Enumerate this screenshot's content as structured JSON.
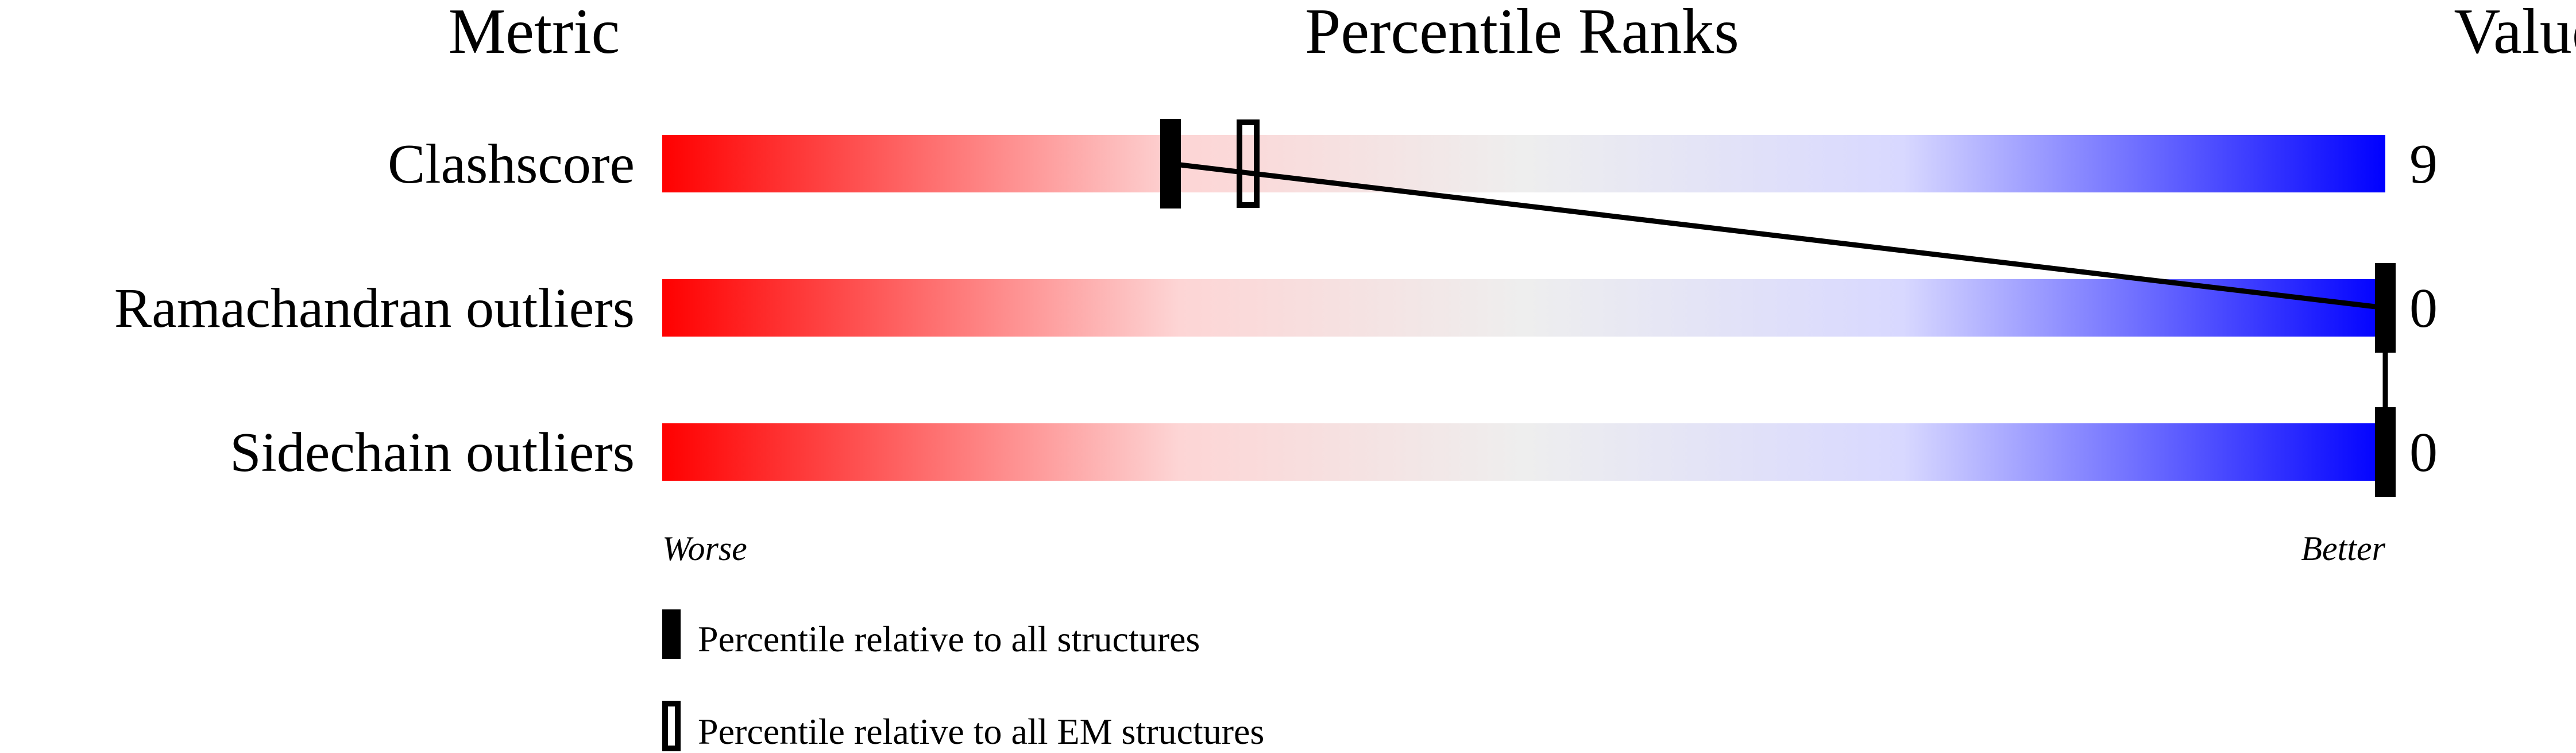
{
  "chart_data": {
    "type": "percentile-slider",
    "headers": {
      "metric": "Metric",
      "ranks": "Percentile Ranks",
      "value": "Value"
    },
    "xlim": [
      0,
      100
    ],
    "axis_labels": {
      "worse": "Worse",
      "better": "Better"
    },
    "gradient_colors": [
      "#ff0000",
      "#fdd5d5",
      "#eeeeee",
      "#d8d8ff",
      "#0000ff"
    ],
    "metrics": [
      {
        "name": "Clashscore",
        "value": "9",
        "percentile_all": 29.5,
        "percentile_em": 34
      },
      {
        "name": "Ramachandran outliers",
        "value": "0",
        "percentile_all": 100,
        "percentile_em": null
      },
      {
        "name": "Sidechain outliers",
        "value": "0",
        "percentile_all": 100,
        "percentile_em": null
      }
    ],
    "legend": [
      {
        "marker": "filled",
        "label": "Percentile relative to all structures"
      },
      {
        "marker": "open",
        "label": "Percentile relative to all EM structures"
      }
    ]
  }
}
